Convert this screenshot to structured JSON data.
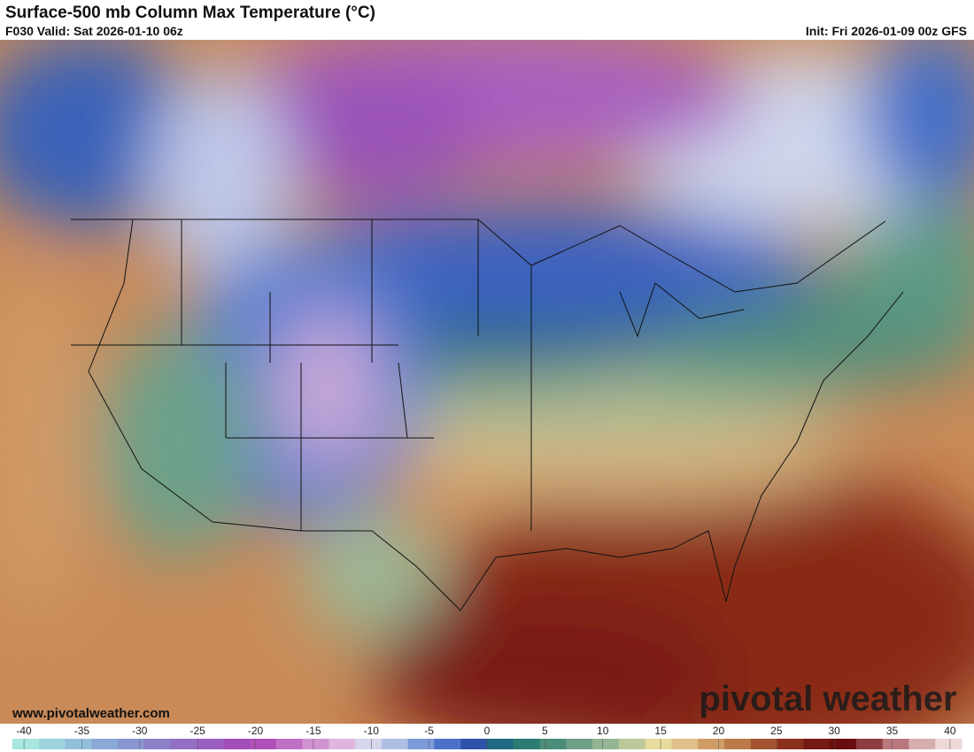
{
  "header": {
    "title": "Surface-500 mb Column Max Temperature (°C)",
    "valid": "F030 Valid: Sat 2026-01-10 06z",
    "init": "Init: Fri 2026-01-09 00z GFS"
  },
  "footer": {
    "website": "www.pivotalweather.com",
    "watermark": "pivotal weather"
  },
  "colorbar": {
    "range": [
      -41,
      41
    ],
    "ticks": [
      -40,
      -35,
      -30,
      -25,
      -20,
      -15,
      -10,
      -5,
      0,
      5,
      10,
      15,
      20,
      25,
      30,
      35,
      40
    ],
    "colors": [
      "#a8e6e0",
      "#9dd4e0",
      "#93bfdc",
      "#8aa9d6",
      "#8a95d0",
      "#8d80c8",
      "#9470c4",
      "#9b5fc0",
      "#a24db8",
      "#b050b8",
      "#c070c4",
      "#d092d0",
      "#dfb4de",
      "#d6d6ea",
      "#aebde4",
      "#7d9ad8",
      "#4b72c8",
      "#2d52a8",
      "#1f6a80",
      "#2a7c72",
      "#4b8d7a",
      "#6fa088",
      "#95b496",
      "#bcc898",
      "#e6dc9c",
      "#e0c088",
      "#cf9c66",
      "#bb7a4a",
      "#a45432",
      "#8c3020",
      "#761814",
      "#6a0c10",
      "#8e3c42",
      "#b8787c",
      "#d6aeae",
      "#ecd8d6"
    ]
  }
}
